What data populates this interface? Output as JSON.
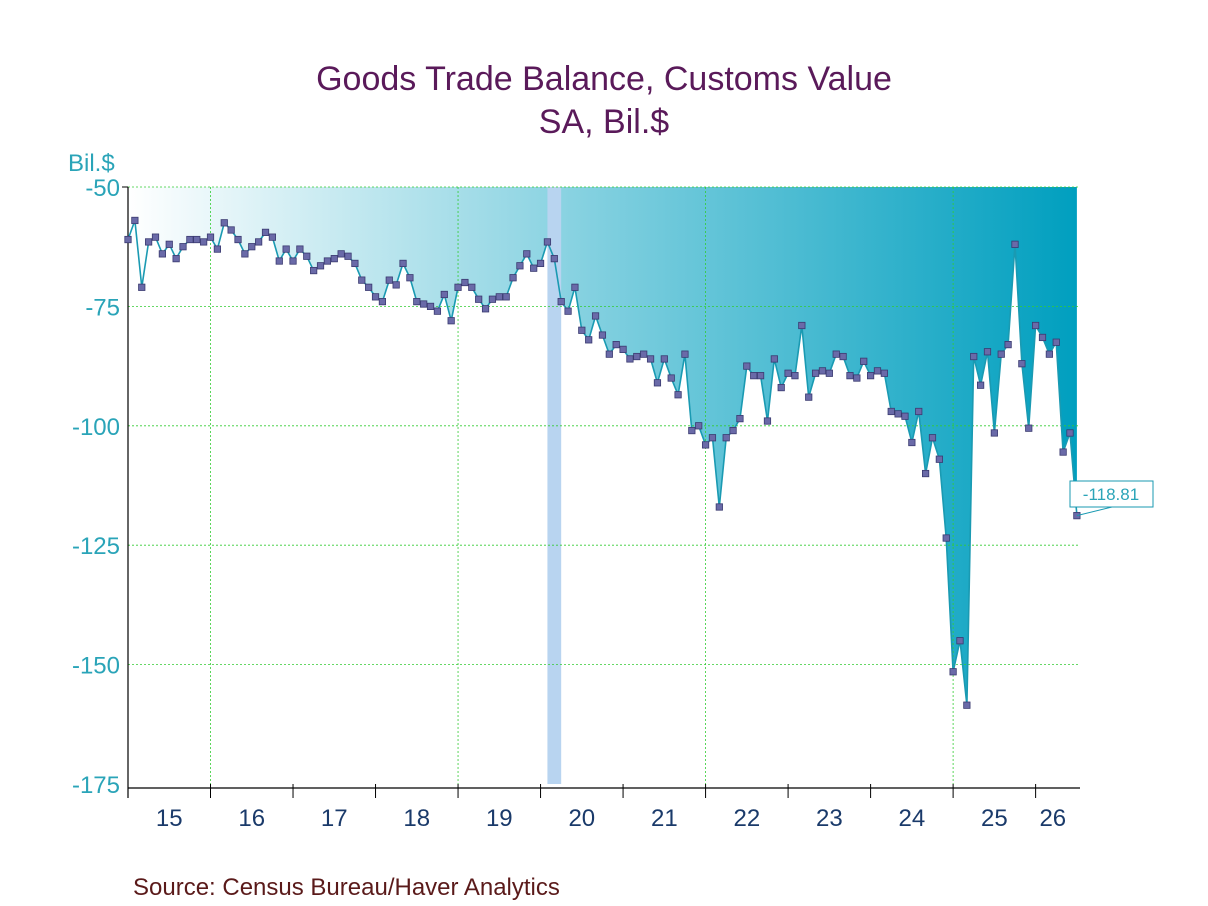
{
  "chart_data": {
    "type": "area",
    "title": "Goods Trade Balance, Customs Value",
    "subtitle": "SA, Bil.$",
    "ylabel": "Bil.$",
    "ylim": [
      -175,
      -50
    ],
    "yticks": [
      "-50",
      "-75",
      "-100",
      "-125",
      "-150",
      "-175"
    ],
    "xticks": [
      "15",
      "16",
      "17",
      "18",
      "19",
      "20",
      "21",
      "22",
      "23",
      "24",
      "25",
      "26"
    ],
    "x_range": [
      "2015-01",
      "2026-06"
    ],
    "grid": true,
    "recession_band": [
      "2020-02",
      "2020-04"
    ],
    "last_value_label": "-118.81",
    "series": [
      {
        "start": "2015-01",
        "frequency": "monthly",
        "values": [
          -61,
          -57,
          -71,
          -61.5,
          -60.5,
          -64,
          -62,
          -65,
          -62.5,
          -61,
          -61,
          -61.5,
          -60.5,
          -63,
          -57.5,
          -59,
          -61,
          -64,
          -62.5,
          -61.5,
          -59.5,
          -60.5,
          -65.5,
          -63,
          -65.5,
          -63,
          -64.5,
          -67.5,
          -66.5,
          -65.5,
          -65,
          -64,
          -64.5,
          -66,
          -69.5,
          -71,
          -73,
          -74,
          -69.5,
          -70.5,
          -66,
          -69,
          -74,
          -74.5,
          -75,
          -76,
          -72.5,
          -78,
          -71,
          -70,
          -71,
          -73.5,
          -75.5,
          -73.5,
          -73,
          -73,
          -69,
          -66.5,
          -64,
          -67,
          -66,
          -61.5,
          -65,
          -74,
          -76,
          -71,
          -80,
          -82,
          -77,
          -81,
          -85,
          -83,
          -84,
          -86,
          -85.5,
          -85,
          -86,
          -91,
          -86,
          -90,
          -93.5,
          -85,
          -101,
          -100,
          -104,
          -102.5,
          -117,
          -102.5,
          -101,
          -98.5,
          -87.5,
          -89.5,
          -89.5,
          -99,
          -86,
          -92,
          -89,
          -89.5,
          -79,
          -94,
          -89,
          -88.5,
          -89,
          -85,
          -85.5,
          -89.5,
          -90,
          -86.5,
          -89.5,
          -88.5,
          -89,
          -97,
          -97.5,
          -98,
          -103.5,
          -97,
          -110,
          -102.5,
          -107,
          -123.5,
          -151.5,
          -145,
          -158.5,
          -85.5,
          -91.5,
          -84.5,
          -101.5,
          -85,
          -83,
          -62,
          -87,
          -100.5,
          -79,
          -81.5,
          -85,
          -82.5,
          -105.5,
          -101.5,
          -118.81
        ]
      }
    ],
    "source": "Source:  Census Bureau/Haver Analytics"
  },
  "colors": {
    "title": "#5a1a5a",
    "axis_text": "#2aa4b8",
    "x_tick_text": "#1a3a6a",
    "line": "#1a9ab2",
    "marker_fill": "#6a6aa8",
    "area_start": "#ffffff",
    "area_end": "#009fbf",
    "grid": "#33cc33",
    "recession": "#b8d4f0",
    "source": "#5a1a1a"
  }
}
